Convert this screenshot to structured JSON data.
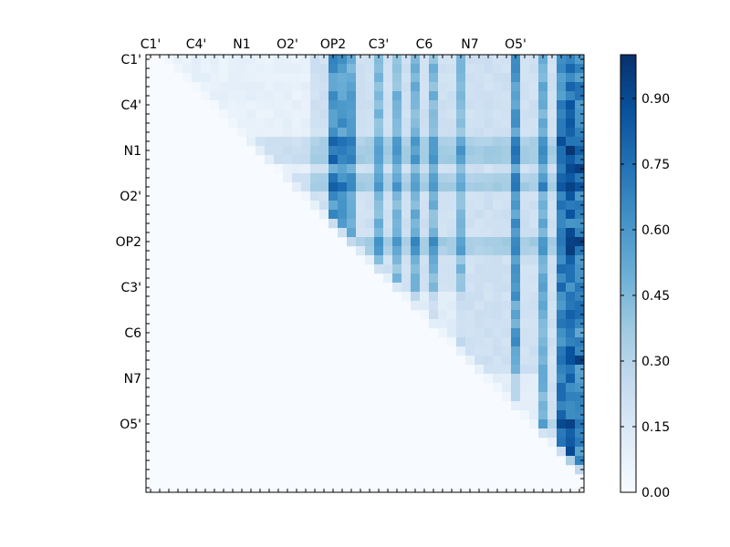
{
  "chart_data": {
    "type": "heatmap",
    "colormap": "Blues",
    "n": 48,
    "x_tick_labels": [
      "C1'",
      "C4'",
      "N1",
      "O2'",
      "OP2",
      "C3'",
      "C6",
      "N7",
      "O5'"
    ],
    "x_tick_indices": [
      0,
      5,
      10,
      15,
      20,
      25,
      30,
      35,
      40
    ],
    "y_tick_labels": [
      "C1'",
      "C4'",
      "N1",
      "O2'",
      "OP2",
      "C3'",
      "C6",
      "N7",
      "O5'"
    ],
    "y_tick_indices": [
      0,
      5,
      10,
      15,
      20,
      25,
      30,
      35,
      40
    ],
    "colorbar": {
      "range": [
        0,
        1.0
      ],
      "tick_values": [
        0.0,
        0.15,
        0.3,
        0.45,
        0.6,
        0.75,
        0.9
      ],
      "tick_labels": [
        "0.00",
        "0.15",
        "0.30",
        "0.45",
        "0.60",
        "0.75",
        "0.90"
      ]
    },
    "row_values": [
      "....................................................................................................",
      "..........................................",
      "...."
    ]
  }
}
